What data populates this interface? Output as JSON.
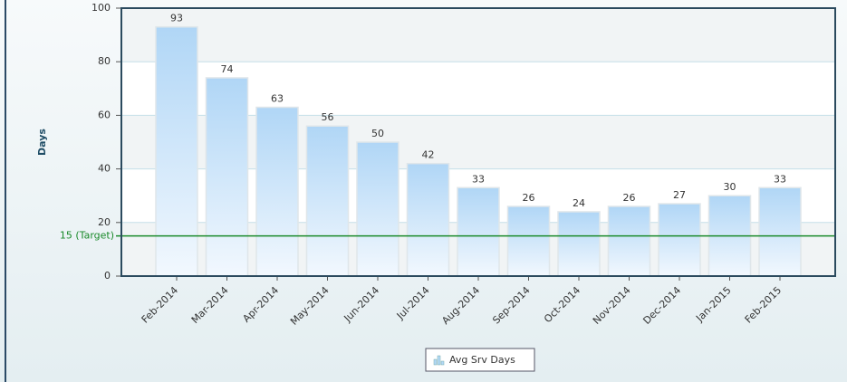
{
  "chart_data": {
    "type": "bar",
    "y_label": "Days",
    "categories": [
      "Feb-2014",
      "Mar-2014",
      "Apr-2014",
      "May-2014",
      "Jun-2014",
      "Jul-2014",
      "Aug-2014",
      "Sep-2014",
      "Oct-2014",
      "Nov-2014",
      "Dec-2014",
      "Jan-2015",
      "Feb-2015"
    ],
    "series": [
      {
        "name": "Avg Srv Days",
        "color": "#b3d9f7",
        "values": [
          93,
          74,
          63,
          56,
          50,
          42,
          33,
          26,
          24,
          26,
          27,
          30,
          33
        ]
      }
    ],
    "ylim": [
      0,
      100
    ],
    "yticks": [
      0,
      20,
      40,
      60,
      80,
      100
    ],
    "grid": true,
    "target": {
      "value": 15,
      "label": "15 (Target)",
      "color": "#1a8a2a"
    },
    "legend": "bottom"
  }
}
